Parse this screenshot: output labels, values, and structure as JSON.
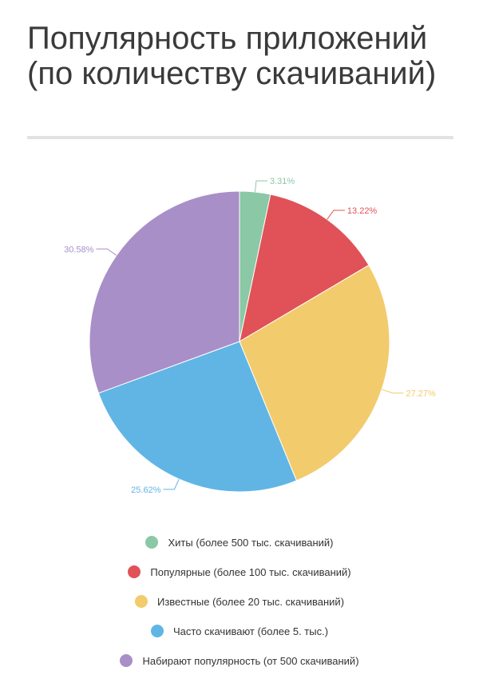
{
  "title": "Популярность приложений (по количеству скачиваний)",
  "chart_data": {
    "type": "pie",
    "title": "Популярность приложений (по количеству скачиваний)",
    "legend_position": "bottom",
    "slices": [
      {
        "name": "Хиты (более 500 тыс. скачиваний)",
        "value": 3.31,
        "label": "3.31%",
        "color": "#8bc8a5"
      },
      {
        "name": "Популярные (более 100 тыс. скачиваний)",
        "value": 13.22,
        "label": "13.22%",
        "color": "#e05257"
      },
      {
        "name": "Известные (более 20 тыс. скачиваний)",
        "value": 27.27,
        "label": "27.27%",
        "color": "#f2cb6c"
      },
      {
        "name": "Часто скачивают (более 5. тыс.)",
        "value": 25.62,
        "label": "25.62%",
        "color": "#60b5e5"
      },
      {
        "name": "Набирают популярность (от 500 скачиваний)",
        "value": 30.58,
        "label": "30.58%",
        "color": "#a98fc8"
      }
    ]
  }
}
